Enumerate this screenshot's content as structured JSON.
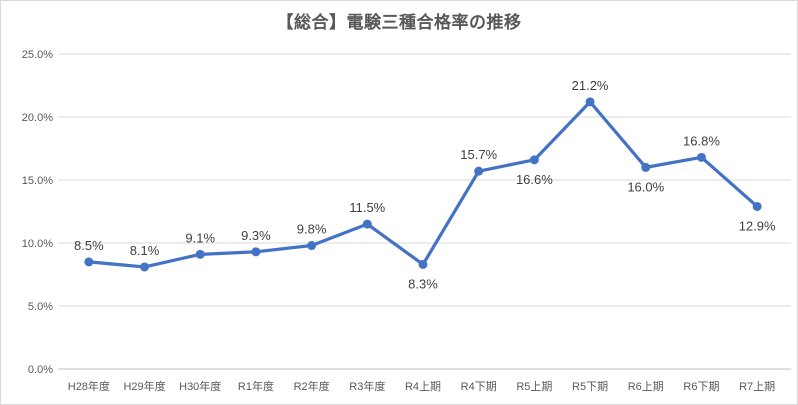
{
  "chart_data": {
    "type": "line",
    "title": "【総合】電験三種合格率の推移",
    "categories": [
      "H28年度",
      "H29年度",
      "H30年度",
      "R1年度",
      "R2年度",
      "R3年度",
      "R4上期",
      "R4下期",
      "R5上期",
      "R5下期",
      "R6上期",
      "R6下期",
      "R7上期"
    ],
    "values": [
      8.5,
      8.1,
      9.1,
      9.3,
      9.8,
      11.5,
      8.3,
      15.7,
      16.6,
      21.2,
      16.0,
      16.8,
      12.9
    ],
    "data_labels": [
      "8.5%",
      "8.1%",
      "9.1%",
      "9.3%",
      "9.8%",
      "11.5%",
      "8.3%",
      "15.7%",
      "16.6%",
      "21.2%",
      "16.0%",
      "16.8%",
      "12.9%"
    ],
    "label_positions": [
      "above",
      "above",
      "above",
      "above",
      "above",
      "above",
      "below",
      "above",
      "below",
      "above",
      "below",
      "above",
      "below"
    ],
    "xlabel": "",
    "ylabel": "",
    "ylim": [
      0,
      25
    ],
    "ytick_labels": [
      "0.0%",
      "5.0%",
      "10.0%",
      "15.0%",
      "20.0%",
      "25.0%"
    ],
    "grid": true,
    "legend": "none",
    "marker": "circle"
  },
  "colors": {
    "line": "#4472C4",
    "gridline": "#d9d9d9",
    "axis_line": "#bfbfbf",
    "chart_border": "#d9d9d9",
    "background": "#ffffff",
    "title_text": "#595959",
    "axis_text": "#595959",
    "data_label_text": "#404040"
  }
}
